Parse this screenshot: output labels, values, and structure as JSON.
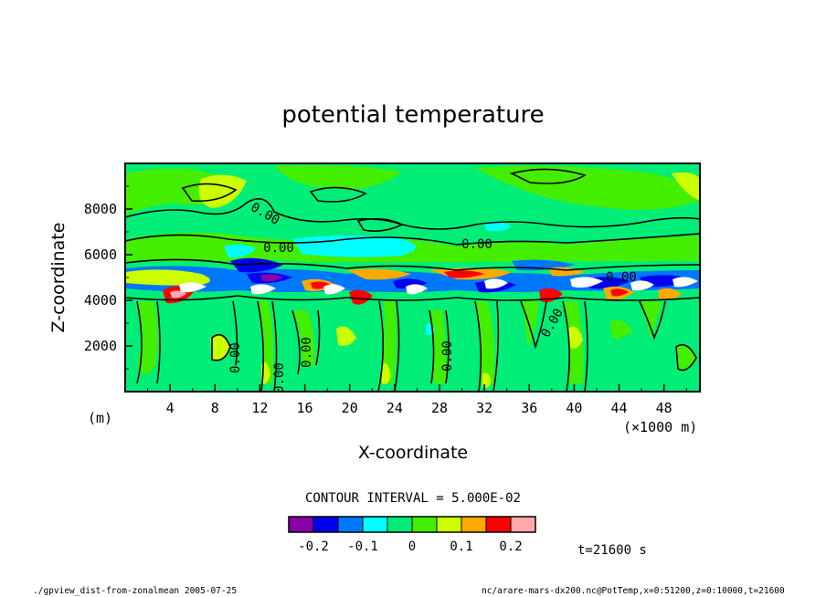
{
  "chart_data": {
    "type": "heatmap",
    "title": "potential temperature",
    "xlabel": "X-coordinate",
    "ylabel": "Z-coordinate",
    "x_unit_left": "(m)",
    "x_unit_right": "(×1000 m)",
    "xlim": [
      0,
      51.2
    ],
    "ylim": [
      0,
      10000
    ],
    "x_ticks": [
      "4",
      "8",
      "12",
      "16",
      "20",
      "24",
      "28",
      "32",
      "36",
      "40",
      "44",
      "48"
    ],
    "y_ticks": [
      "2000",
      "4000",
      "6000",
      "8000"
    ],
    "contour_interval_text": "CONTOUR INTERVAL = 5.000E-02",
    "contour_labels": [
      "0.00",
      "0.00",
      "0.00",
      "0.00",
      "0.00",
      "0.00",
      "0.00",
      "0.00",
      "0.00"
    ],
    "colorbar": {
      "colors": [
        "#8800aa",
        "#0000ee",
        "#0077ff",
        "#00ffff",
        "#00ee77",
        "#44ee00",
        "#ccff00",
        "#ffaa00",
        "#ff0000",
        "#ffaaaa"
      ],
      "tick_labels": [
        "-0.2",
        "-0.1",
        "0",
        "0.1",
        "0.2"
      ],
      "tick_values": [
        -0.2,
        -0.1,
        0,
        0.1,
        0.2
      ]
    },
    "time_label": "t=21600 s",
    "footer_left": "./gpview_dist-from-zonalmean  2005-07-25",
    "footer_right": "nc/arare-mars-dx200.nc@PotTemp,x=0:51200,z=0:10000,t=21600"
  }
}
